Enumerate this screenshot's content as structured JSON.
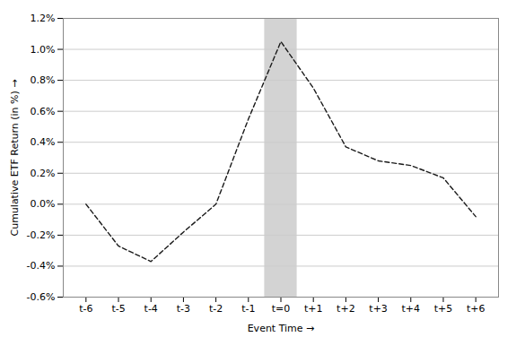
{
  "chart_data": {
    "type": "line",
    "x": [
      -6,
      -5,
      -4,
      -3,
      -2,
      -1,
      0,
      1,
      2,
      3,
      4,
      5,
      6
    ],
    "values": [
      0.0,
      -0.27,
      -0.37,
      -0.18,
      0.0,
      0.55,
      1.05,
      0.75,
      0.37,
      0.28,
      0.25,
      0.17,
      -0.08
    ],
    "color": "#1a1a1a",
    "line_style": "dashed",
    "xlabel": "Event Time",
    "ylabel": "Cumulative ETF Return (in %)",
    "xlim": [
      -6.7,
      6.7
    ],
    "xticks": [
      {
        "value": -6,
        "label": "t-6"
      },
      {
        "value": -5,
        "label": "t-5"
      },
      {
        "value": -4,
        "label": "t-4"
      },
      {
        "value": -3,
        "label": "t-3"
      },
      {
        "value": -2,
        "label": "t-2"
      },
      {
        "value": -1,
        "label": "t-1"
      },
      {
        "value": 0,
        "label": "t=0"
      },
      {
        "value": 1,
        "label": "t+1"
      },
      {
        "value": 2,
        "label": "t+2"
      },
      {
        "value": 3,
        "label": "t+3"
      },
      {
        "value": 4,
        "label": "t+4"
      },
      {
        "value": 5,
        "label": "t+5"
      },
      {
        "value": 6,
        "label": "t+6"
      }
    ],
    "ylim": [
      -0.6,
      1.2
    ],
    "yticks": [
      {
        "value": -0.6,
        "label": "-0.6%"
      },
      {
        "value": -0.4,
        "label": "-0.4%"
      },
      {
        "value": -0.2,
        "label": "-0.2%"
      },
      {
        "value": 0.0,
        "label": "0.0%"
      },
      {
        "value": 0.2,
        "label": "0.2%"
      },
      {
        "value": 0.4,
        "label": "0.4%"
      },
      {
        "value": 0.6,
        "label": "0.6%"
      },
      {
        "value": 0.8,
        "label": "0.8%"
      },
      {
        "value": 1.0,
        "label": "1.0%"
      },
      {
        "value": 1.2,
        "label": "1.2%"
      }
    ],
    "grid": "y",
    "highlight": {
      "x": [
        -0.5,
        0.5
      ],
      "color": "#d3d3d3"
    }
  }
}
